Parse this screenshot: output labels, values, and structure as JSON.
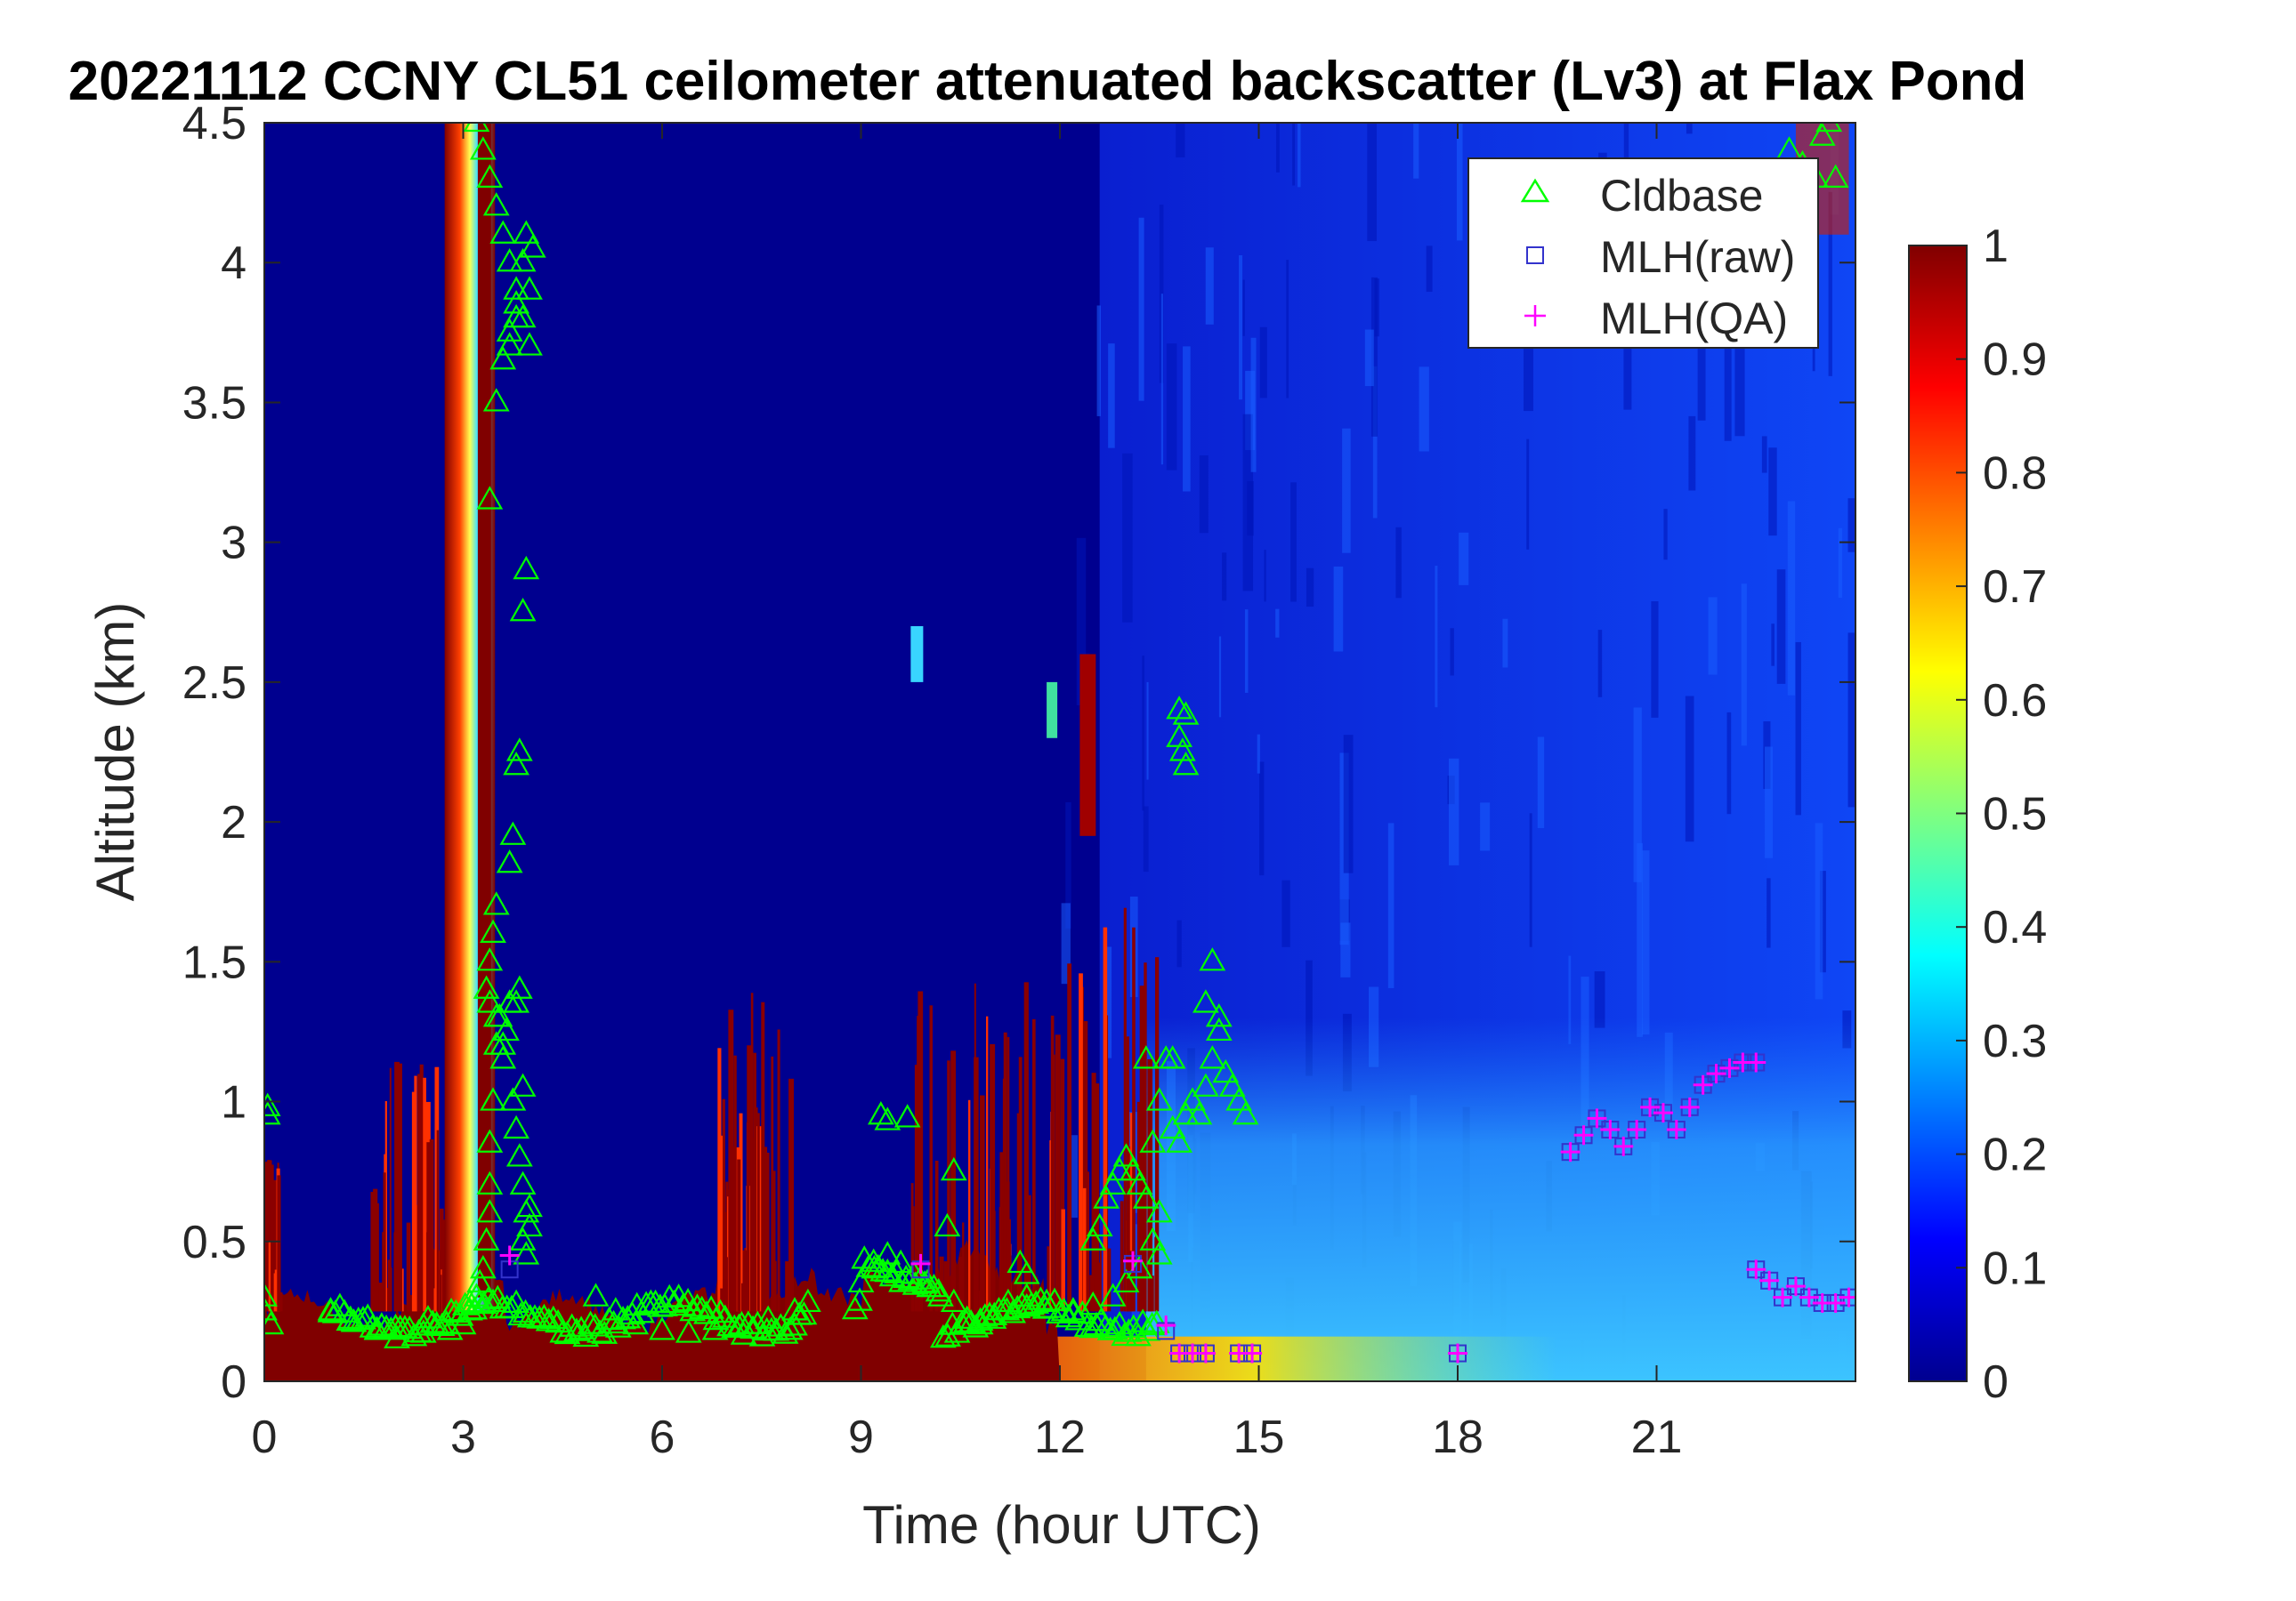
{
  "chart_data": {
    "type": "heatmap",
    "title": "20221112 CCNY CL51 ceilometer attenuated backscatter (Lv3) at Flax Pond",
    "xlabel": "Time (hour UTC)",
    "ylabel": "Altitude (km)",
    "xlim": [
      0,
      24
    ],
    "ylim": [
      0,
      4.5
    ],
    "x_ticks": [
      0,
      3,
      6,
      9,
      12,
      15,
      18,
      21
    ],
    "x_tick_labels": [
      "0",
      "3",
      "6",
      "9",
      "12",
      "15",
      "18",
      "21"
    ],
    "y_ticks": [
      0,
      0.5,
      1,
      1.5,
      2,
      2.5,
      3,
      3.5,
      4,
      4.5
    ],
    "y_tick_labels": [
      "0",
      "0.5",
      "1",
      "1.5",
      "2",
      "2.5",
      "3",
      "3.5",
      "4",
      "4.5"
    ],
    "colorbar": {
      "colormap": "jet",
      "limits": [
        0,
        1
      ],
      "ticks": [
        0,
        0.1,
        0.2,
        0.3,
        0.4,
        0.5,
        0.6,
        0.7,
        0.8,
        0.9,
        1
      ],
      "tick_labels": [
        "0",
        "0.1",
        "0.2",
        "0.3",
        "0.4",
        "0.5",
        "0.6",
        "0.7",
        "0.8",
        "0.9",
        "1"
      ]
    },
    "legend": {
      "placement": "top-right",
      "entries": [
        {
          "label": "Cldbase",
          "marker": "triangle",
          "color": "#00ff00"
        },
        {
          "label": "MLH(raw)",
          "marker": "square",
          "color": "#3333cc"
        },
        {
          "label": "MLH(QA)",
          "marker": "plus",
          "color": "#ff00ff"
        }
      ]
    },
    "backscatter_features": [
      {
        "name": "surface-layer",
        "x_range": [
          0,
          12
        ],
        "y_top_km": 0.3,
        "value": 1.0
      },
      {
        "name": "vertical-plume",
        "x_range": [
          2.7,
          3.5
        ],
        "y_range": [
          0.2,
          4.5
        ],
        "value": 1.0
      },
      {
        "name": "evening-diffuse-layer",
        "x_range": [
          13.5,
          24
        ],
        "y_top_km": 1.3,
        "value": 0.3
      },
      {
        "name": "daytime-background",
        "x_range": [
          12,
          24
        ],
        "y_range": [
          0,
          4.5
        ],
        "value": 0.12
      }
    ],
    "series": [
      {
        "name": "Cldbase",
        "x": [
          0.05,
          0.05,
          0.0,
          0.0,
          0.1,
          1.0,
          1.3,
          1.7,
          2.0,
          2.4,
          2.6,
          2.8,
          3.0,
          3.1,
          3.2,
          3.25,
          3.3,
          3.35,
          3.4,
          3.4,
          3.4,
          3.45,
          3.5,
          3.5,
          3.4,
          3.35,
          3.4,
          3.45,
          3.5,
          3.55,
          3.6,
          3.6,
          3.65,
          3.7,
          3.75,
          3.8,
          3.85,
          3.9,
          3.95,
          3.9,
          3.95,
          4.0,
          4.0,
          3.9,
          3.85,
          3.8,
          3.7,
          3.75,
          3.8,
          3.85,
          3.9,
          3.95,
          4.0,
          3.9,
          3.8,
          3.7,
          3.6,
          3.5,
          3.4,
          3.3,
          3.2,
          3.7,
          3.8,
          4.0,
          4.05,
          3.95,
          3.9,
          3.8,
          3.7,
          3.6,
          3.5,
          3.4,
          5.0,
          5.3,
          5.6,
          6.0,
          6.4,
          6.8,
          7.2,
          7.6,
          8.0,
          8.2,
          9.0,
          9.2,
          9.4,
          9.6,
          9.8,
          10.0,
          10.2,
          10.4,
          10.6,
          10.8,
          11.0,
          11.2,
          11.5,
          11.8,
          12.2,
          12.5,
          12.8,
          13.0,
          13.2,
          13.4,
          13.5,
          9.3,
          9.4,
          9.7,
          10.3,
          10.4,
          11.4,
          11.5,
          12.5,
          12.6,
          12.7,
          12.8,
          12.9,
          13.0,
          13.1,
          13.2,
          13.3,
          13.4,
          13.5,
          13.6,
          13.7,
          13.8,
          13.9,
          14.0,
          14.1,
          14.2,
          14.3,
          14.4,
          14.5,
          14.6,
          14.7,
          14.8,
          14.3,
          14.2,
          14.4,
          13.7,
          13.8,
          13.9,
          13.85,
          13.8,
          13.9,
          13.3,
          13.5,
          23.0,
          23.2,
          23.4,
          23.5,
          23.6,
          23.7
        ],
        "y": [
          0.95,
          0.98,
          0.3,
          0.25,
          0.2,
          0.25,
          0.22,
          0.18,
          0.15,
          0.17,
          0.2,
          0.18,
          0.2,
          0.25,
          0.3,
          0.35,
          0.4,
          0.5,
          0.6,
          0.7,
          0.85,
          1.0,
          1.2,
          1.3,
          1.35,
          1.4,
          1.5,
          1.6,
          1.7,
          1.3,
          1.2,
          1.15,
          1.25,
          1.35,
          1.0,
          0.9,
          0.8,
          0.7,
          0.6,
          0.5,
          0.45,
          0.55,
          0.62,
          1.05,
          1.4,
          1.35,
          1.85,
          1.95,
          2.2,
          2.25,
          2.75,
          2.9,
          3.7,
          3.8,
          3.9,
          4.0,
          4.1,
          4.2,
          4.3,
          4.4,
          4.5,
          3.75,
          3.85,
          3.9,
          4.05,
          4.1,
          4.0,
          3.8,
          3.7,
          3.65,
          3.5,
          3.15,
          0.3,
          0.25,
          0.2,
          0.18,
          0.17,
          0.18,
          0.2,
          0.22,
          0.25,
          0.28,
          0.35,
          0.4,
          0.45,
          0.42,
          0.38,
          0.35,
          0.3,
          0.28,
          0.22,
          0.2,
          0.22,
          0.25,
          0.3,
          0.28,
          0.25,
          0.27,
          0.3,
          0.35,
          0.4,
          0.5,
          0.6,
          0.95,
          0.93,
          0.94,
          0.55,
          0.75,
          0.42,
          0.38,
          0.5,
          0.55,
          0.65,
          0.7,
          0.75,
          0.8,
          0.75,
          0.7,
          0.65,
          0.85,
          1.0,
          1.15,
          0.9,
          0.85,
          0.95,
          1.0,
          0.95,
          1.05,
          1.15,
          1.25,
          1.1,
          1.05,
          1.0,
          0.95,
          1.5,
          1.35,
          1.3,
          1.15,
          2.3,
          2.2,
          2.25,
          2.4,
          2.38,
          1.15,
          0.45,
          4.4,
          4.35,
          4.3,
          4.45,
          4.5,
          4.3
        ]
      },
      {
        "name": "MLH(raw)",
        "x": [
          3.7,
          9.9,
          13.1,
          13.6,
          13.8,
          14.0,
          14.2,
          14.7,
          14.9,
          18.0,
          19.7,
          19.9,
          20.1,
          20.3,
          20.5,
          20.7,
          20.9,
          21.1,
          21.3,
          21.5,
          21.7,
          21.9,
          22.1,
          22.3,
          22.5,
          22.5,
          22.7,
          22.9,
          23.1,
          23.3,
          23.5,
          23.7,
          23.9
        ],
        "y": [
          0.4,
          0.4,
          0.42,
          0.18,
          0.1,
          0.1,
          0.1,
          0.1,
          0.1,
          0.1,
          0.82,
          0.88,
          0.94,
          0.9,
          0.84,
          0.9,
          0.98,
          0.96,
          0.9,
          0.98,
          1.06,
          1.1,
          1.12,
          1.14,
          1.14,
          0.4,
          0.36,
          0.3,
          0.34,
          0.3,
          0.28,
          0.28,
          0.3
        ]
      },
      {
        "name": "MLH(QA)",
        "x": [
          3.7,
          9.9,
          13.1,
          13.6,
          13.8,
          14.0,
          14.2,
          14.7,
          14.9,
          18.0,
          19.7,
          19.9,
          20.1,
          20.3,
          20.5,
          20.7,
          20.9,
          21.1,
          21.3,
          21.5,
          21.7,
          21.9,
          22.1,
          22.3,
          22.5,
          22.5,
          22.7,
          22.9,
          23.1,
          23.3,
          23.5,
          23.7,
          23.9
        ],
        "y": [
          0.45,
          0.42,
          0.43,
          0.2,
          0.1,
          0.1,
          0.1,
          0.1,
          0.1,
          0.1,
          0.82,
          0.88,
          0.94,
          0.9,
          0.84,
          0.9,
          0.98,
          0.96,
          0.9,
          0.98,
          1.06,
          1.1,
          1.12,
          1.14,
          1.14,
          0.4,
          0.36,
          0.3,
          0.34,
          0.3,
          0.28,
          0.28,
          0.3
        ]
      }
    ]
  }
}
